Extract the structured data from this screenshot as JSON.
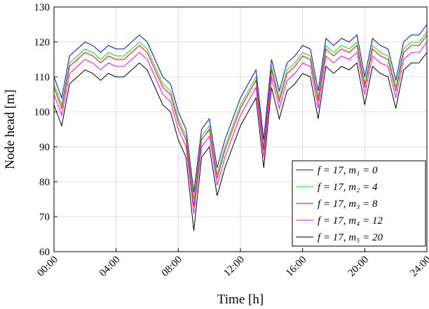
{
  "chart_data": {
    "type": "line",
    "x_label": "Time [h]",
    "y_label": "Node head [m]",
    "x": [
      0,
      0.5,
      1,
      1.5,
      2,
      2.5,
      3,
      3.5,
      4,
      4.5,
      5,
      5.5,
      6,
      6.5,
      7,
      7.5,
      8,
      8.5,
      9,
      9.5,
      10,
      10.5,
      11,
      11.5,
      12,
      12.5,
      13,
      13.5,
      14,
      14.5,
      15,
      15.5,
      16,
      16.5,
      17,
      17.5,
      18,
      18.5,
      19,
      19.5,
      20,
      20.5,
      21,
      21.5,
      22,
      22.5,
      23,
      23.5,
      24
    ],
    "series": [
      {
        "name": "f = 17, m₁ = 0",
        "color": "#0000ff",
        "values": [
          110,
          104,
          116,
          118,
          120,
          119,
          117,
          119,
          118,
          118,
          120,
          122,
          120,
          115,
          110,
          108,
          100,
          95,
          77,
          95,
          98,
          84,
          92,
          98,
          104,
          108,
          112,
          92,
          115,
          106,
          114,
          116,
          119,
          118,
          106,
          121,
          119,
          121,
          120,
          122,
          110,
          121,
          119,
          118,
          109,
          120,
          122,
          122,
          125
        ]
      },
      {
        "name": "f = 17, m₂ = 4",
        "color": "#00ee00",
        "values": [
          108,
          102,
          114,
          116,
          118,
          117,
          115,
          117,
          116,
          116,
          118,
          120,
          118,
          113,
          108,
          106,
          98,
          93,
          75,
          93,
          96,
          82,
          90,
          96,
          102,
          106,
          110,
          90,
          113,
          104,
          112,
          114,
          117,
          116,
          104,
          119,
          117,
          119,
          118,
          120,
          108,
          119,
          117,
          116,
          107,
          118,
          120,
          120,
          123
        ]
      },
      {
        "name": "f = 17, m₃ = 8",
        "color": "#ff0000",
        "values": [
          107,
          101,
          113,
          115,
          117,
          116,
          114,
          116,
          115,
          115,
          117,
          119,
          117,
          112,
          107,
          105,
          97,
          92,
          73,
          92,
          95,
          81,
          89,
          95,
          101,
          105,
          109,
          89,
          112,
          103,
          111,
          113,
          116,
          115,
          103,
          118,
          116,
          118,
          117,
          119,
          107,
          118,
          116,
          115,
          106,
          117,
          119,
          119,
          122
        ]
      },
      {
        "name": "f = 17, m₄ = 12",
        "color": "#ff00ff",
        "values": [
          105,
          99,
          111,
          113,
          115,
          114,
          112,
          114,
          113,
          113,
          115,
          117,
          115,
          110,
          105,
          103,
          95,
          90,
          71,
          90,
          93,
          79,
          87,
          93,
          99,
          103,
          107,
          87,
          110,
          101,
          109,
          111,
          114,
          113,
          101,
          116,
          114,
          116,
          115,
          117,
          105,
          116,
          114,
          113,
          104,
          115,
          117,
          117,
          120
        ]
      },
      {
        "name": "f = 17, m₅ = 20",
        "color": "#000000",
        "values": [
          102,
          96,
          108,
          110,
          112,
          111,
          109,
          111,
          110,
          110,
          112,
          114,
          112,
          107,
          102,
          100,
          92,
          87,
          66,
          87,
          90,
          76,
          84,
          90,
          96,
          100,
          104,
          84,
          107,
          98,
          106,
          108,
          111,
          110,
          98,
          113,
          111,
          113,
          112,
          114,
          102,
          113,
          111,
          110,
          101,
          112,
          114,
          114,
          117
        ]
      }
    ],
    "xlim": [
      0,
      24
    ],
    "xticks": [
      {
        "value": 0,
        "label": "00:00"
      },
      {
        "value": 4,
        "label": "04:00"
      },
      {
        "value": 8,
        "label": "08:00"
      },
      {
        "value": 12,
        "label": "12:00"
      },
      {
        "value": 16,
        "label": "16:00"
      },
      {
        "value": 20,
        "label": "20:00"
      },
      {
        "value": 24,
        "label": "24:00"
      }
    ],
    "ylim": [
      60,
      130
    ],
    "yticks": [
      60,
      70,
      80,
      90,
      100,
      110,
      120,
      130
    ],
    "grid": true,
    "legend": "lower right"
  }
}
